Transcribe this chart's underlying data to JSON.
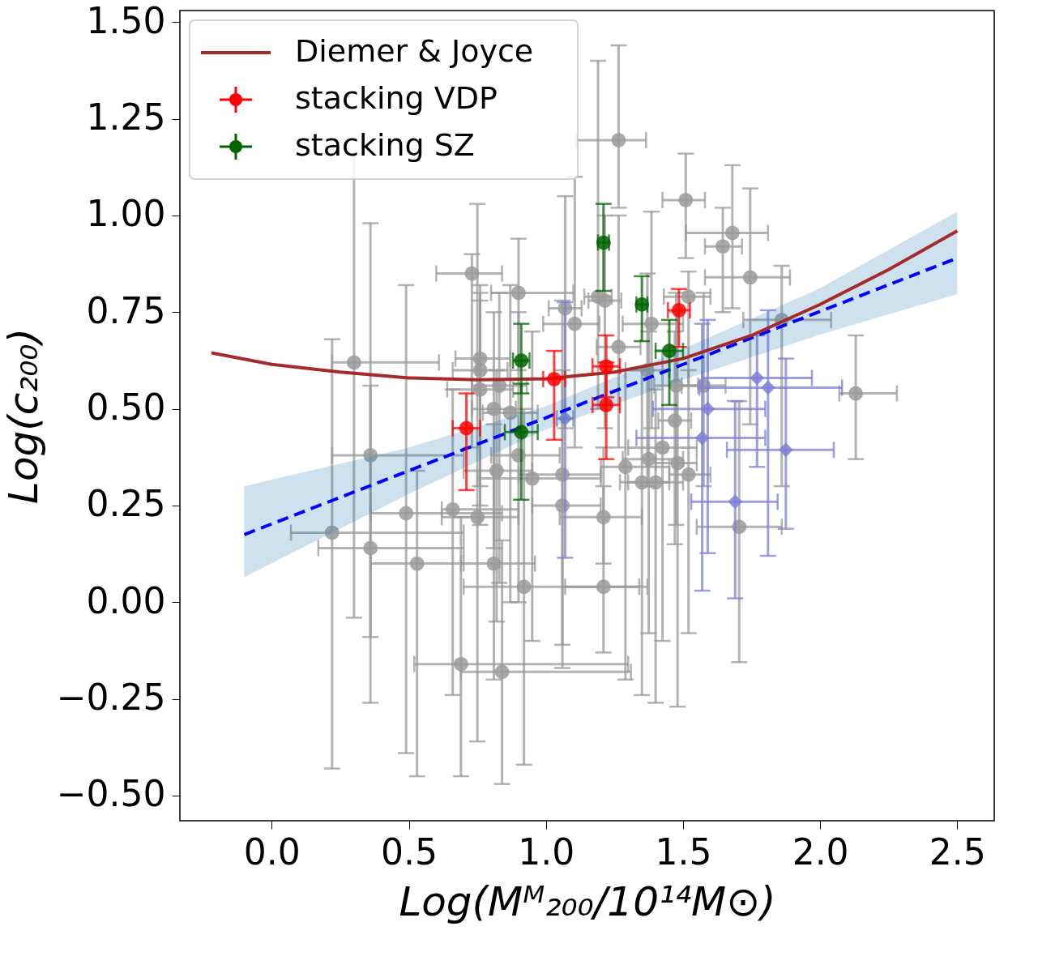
{
  "chart_data": {
    "type": "scatter",
    "xlabel": "Log(Mᴹ₂₀₀/10¹⁴M⊙)",
    "ylabel": "Log(c₂₀₀)",
    "xlim": [
      -0.335,
      2.635
    ],
    "ylim": [
      -0.565,
      1.53
    ],
    "xticks": [
      {
        "value": 0,
        "label": "0.0"
      },
      {
        "value": 0.5,
        "label": "0.5"
      },
      {
        "value": 1,
        "label": "1.0"
      },
      {
        "value": 1.5,
        "label": "1.5"
      },
      {
        "value": 2,
        "label": "2.0"
      },
      {
        "value": 2.5,
        "label": "2.5"
      }
    ],
    "yticks": [
      {
        "value": -0.5,
        "label": "−0.50"
      },
      {
        "value": -0.25,
        "label": "−0.25"
      },
      {
        "value": 0,
        "label": "0.00"
      },
      {
        "value": 0.25,
        "label": "0.25"
      },
      {
        "value": 0.5,
        "label": "0.50"
      },
      {
        "value": 0.75,
        "label": "0.75"
      },
      {
        "value": 1,
        "label": "1.00"
      },
      {
        "value": 1.25,
        "label": "1.25"
      },
      {
        "value": 1.5,
        "label": "1.50"
      }
    ],
    "grid": false,
    "legend": "top left",
    "series": [
      {
        "color": "#9a9a9a",
        "marker": "circle",
        "x": [
          0.22,
          0.3,
          0.36,
          0.36,
          0.49,
          0.53,
          0.66,
          0.69,
          0.75,
          0.73,
          0.76,
          0.76,
          0.76,
          0.83,
          0.81,
          0.87,
          0.9,
          0.84,
          0.81,
          0.92,
          0.95,
          0.9,
          0.82,
          1.06,
          1.06,
          1.21,
          1.21,
          1.29,
          1.35,
          1.4,
          1.375,
          1.425,
          1.48,
          1.52,
          1.705,
          2.13,
          1.745,
          1.68,
          1.645,
          1.51,
          1.265,
          1.52,
          1.86,
          1.385,
          1.105,
          1.07,
          1.19,
          1.215,
          1.265,
          1.475,
          1.575,
          1.47,
          1.37
        ],
        "values": [
          0.18,
          0.62,
          0.38,
          0.14,
          0.23,
          0.1,
          0.24,
          -0.16,
          0.22,
          0.85,
          0.63,
          0.6,
          0.55,
          0.56,
          0.5,
          0.49,
          0.8,
          -0.18,
          0.1,
          0.04,
          0.32,
          0.38,
          0.34,
          0.33,
          0.25,
          0.22,
          0.04,
          0.35,
          0.31,
          0.31,
          0.37,
          0.4,
          0.36,
          0.33,
          0.195,
          0.54,
          0.84,
          0.955,
          0.92,
          1.04,
          1.195,
          0.79,
          0.73,
          0.72,
          0.72,
          0.76,
          0.79,
          0.78,
          0.66,
          0.56,
          0.56,
          0.47,
          0.6
        ],
        "xerrors": [
          [
            0.07,
            0.7
          ],
          [
            0.22,
            0.61
          ],
          [
            0.22,
            0.7
          ],
          [
            0.17,
            0.7
          ],
          [
            0.36,
            0.84
          ],
          [
            0.36,
            0.7
          ],
          [
            0.62,
            0.9
          ],
          [
            0.52,
            1.3
          ],
          [
            0.62,
            0.9
          ],
          [
            0.6,
            0.84
          ],
          [
            0.67,
            0.87
          ],
          0.1,
          0.12,
          0.1,
          0.08,
          0.1,
          [
            0.8,
            1.1
          ],
          [
            0.69,
            1.31
          ],
          [
            0.69,
            0.96
          ],
          [
            0.7,
            1.34
          ],
          [
            0.75,
            1.2
          ],
          [
            0.8,
            1.05
          ],
          [
            0.7,
            0.95
          ],
          [
            0.9,
            1.2
          ],
          [
            0.95,
            1.2
          ],
          [
            1.05,
            1.35
          ],
          [
            1.07,
            1.37
          ],
          [
            1.2,
            1.45
          ],
          [
            1.27,
            1.45
          ],
          [
            1.3,
            1.5
          ],
          [
            1.28,
            1.5
          ],
          [
            1.3,
            1.55
          ],
          [
            1.4,
            1.55
          ],
          [
            1.45,
            1.6
          ],
          [
            1.55,
            1.86
          ],
          [
            2.07,
            2.28
          ],
          [
            1.58,
            1.89
          ],
          [
            1.51,
            1.81
          ],
          [
            1.58,
            1.715
          ],
          [
            1.425,
            1.58
          ],
          [
            1.11,
            1.365
          ],
          [
            1.43,
            1.6
          ],
          [
            1.72,
            2.04
          ],
          [
            1.28,
            1.5
          ],
          [
            0.99,
            1.195
          ],
          0.06,
          0.05,
          0.06,
          0.08,
          0.08,
          0.08,
          0.06,
          0.08
        ],
        "errors": [
          [
            -0.43,
            0.68
          ],
          [
            -0.04,
            1.16
          ],
          [
            -0.09,
            0.56
          ],
          [
            -0.26,
            0.98
          ],
          [
            -0.39,
            0.82
          ],
          [
            -0.45,
            0.34
          ],
          [
            -0.24,
            0.55
          ],
          [
            -0.45,
            0.22
          ],
          [
            -0.36,
            1.03
          ],
          [
            0.4,
            0.9
          ],
          [
            0.3,
            0.8
          ],
          [
            0.25,
            0.82
          ],
          [
            0.2,
            0.78
          ],
          [
            0.05,
            0.8
          ],
          [
            0.14,
            0.75
          ],
          [
            0.0,
            0.82
          ],
          [
            0.6,
            0.94
          ],
          [
            -0.47,
            0.16
          ],
          [
            -0.2,
            0.46
          ],
          [
            -0.42,
            0.5
          ],
          [
            -0.1,
            0.7
          ],
          [
            0.0,
            0.75
          ],
          [
            -0.05,
            0.6
          ],
          [
            -0.11,
            0.78
          ],
          [
            -0.17,
            0.6
          ],
          [
            0.1,
            0.4
          ],
          [
            -0.13,
            0.3
          ],
          [
            -0.2,
            0.6
          ],
          [
            -0.24,
            0.6
          ],
          [
            -0.26,
            0.55
          ],
          [
            -0.08,
            0.7
          ],
          [
            -0.1,
            0.65
          ],
          [
            -0.27,
            0.75
          ],
          [
            -0.08,
            0.6
          ],
          [
            -0.155,
            0.52
          ],
          [
            0.37,
            0.69
          ],
          [
            0.46,
            1.07
          ],
          [
            0.76,
            1.13
          ],
          [
            0.75,
            1.02
          ],
          [
            0.89,
            1.16
          ],
          [
            1.02,
            1.44
          ],
          [
            0.56,
            0.855
          ],
          [
            0.3,
            0.87
          ],
          [
            0.45,
            1.01
          ],
          [
            0.4,
            1.1
          ],
          [
            0.45,
            1.05
          ],
          [
            0.5,
            1.4
          ],
          [
            0.45,
            1.0
          ],
          [
            0.4,
            1.0
          ],
          [
            0.2,
            0.8
          ],
          [
            0.3,
            0.8
          ],
          [
            0.15,
            0.7
          ],
          [
            0.3,
            0.85
          ]
        ]
      },
      {
        "color": "#7f7fd6",
        "marker": "diamond",
        "x": [
          1.07,
          1.59,
          1.57,
          1.69,
          1.77,
          1.81,
          1.875
        ],
        "values": [
          0.475,
          0.5,
          0.425,
          0.26,
          0.58,
          0.555,
          0.394
        ],
        "xerrors": [
          0.03,
          [
            1.39,
            1.8
          ],
          [
            1.33,
            1.8
          ],
          [
            1.53,
            1.845
          ],
          [
            1.57,
            1.97
          ],
          [
            1.56,
            2.08
          ],
          [
            1.66,
            2.05
          ]
        ],
        "errors": [
          [
            0.115,
            0.776
          ],
          [
            0.127,
            0.73
          ],
          [
            0.03,
            0.72
          ],
          [
            0.01,
            0.52
          ],
          [
            0.35,
            0.69
          ],
          [
            0.12,
            0.755
          ],
          [
            0.19,
            0.63
          ]
        ]
      },
      {
        "type": "line",
        "color": "#0000ff",
        "line_style": "dashed",
        "marker": "none",
        "x": [
          -0.1,
          0.5,
          1.0,
          1.5,
          2.0,
          2.5
        ],
        "values": [
          0.175,
          0.34,
          0.477,
          0.615,
          0.752,
          0.89
        ],
        "lower": [
          0.065,
          0.28,
          0.447,
          0.575,
          0.692,
          0.797
        ],
        "upper": [
          0.3,
          0.4,
          0.507,
          0.655,
          0.812,
          1.01
        ]
      },
      {
        "type": "line",
        "name": "Diemer & Joyce",
        "color": "#a52a2a",
        "line_style": "solid",
        "marker": "none",
        "x": [
          -0.22,
          0,
          0.25,
          0.5,
          0.75,
          1.0,
          1.25,
          1.5,
          1.75,
          2.0,
          2.25,
          2.5
        ],
        "values": [
          0.645,
          0.615,
          0.595,
          0.58,
          0.575,
          0.578,
          0.595,
          0.63,
          0.69,
          0.77,
          0.86,
          0.96
        ]
      },
      {
        "name": "stacking VDP",
        "color": "#ff0000",
        "marker": "circle",
        "x": [
          0.71,
          1.03,
          1.22,
          1.22,
          1.485
        ],
        "values": [
          0.45,
          0.577,
          0.61,
          0.51,
          0.755
        ],
        "xerrors": [
          0.05,
          0.04,
          0.05,
          0.05,
          0.04
        ],
        "errors": [
          [
            0.29,
            0.54
          ],
          [
            0.42,
            0.65
          ],
          [
            0.53,
            0.69
          ],
          [
            0.37,
            0.62
          ],
          [
            0.66,
            0.81
          ]
        ]
      },
      {
        "name": "stacking SZ",
        "color": "#006400",
        "marker": "circle",
        "x": [
          0.91,
          0.91,
          1.21,
          1.35,
          1.45
        ],
        "values": [
          0.625,
          0.44,
          0.93,
          0.77,
          0.65
        ],
        "xerrors": [
          0.03,
          0.06,
          0.02,
          0.02,
          0.05
        ],
        "errors": [
          [
            0.54,
            0.72
          ],
          [
            0.265,
            0.565
          ],
          [
            0.805,
            1.03
          ],
          [
            0.675,
            0.843
          ],
          [
            0.51,
            0.73
          ]
        ]
      }
    ]
  }
}
